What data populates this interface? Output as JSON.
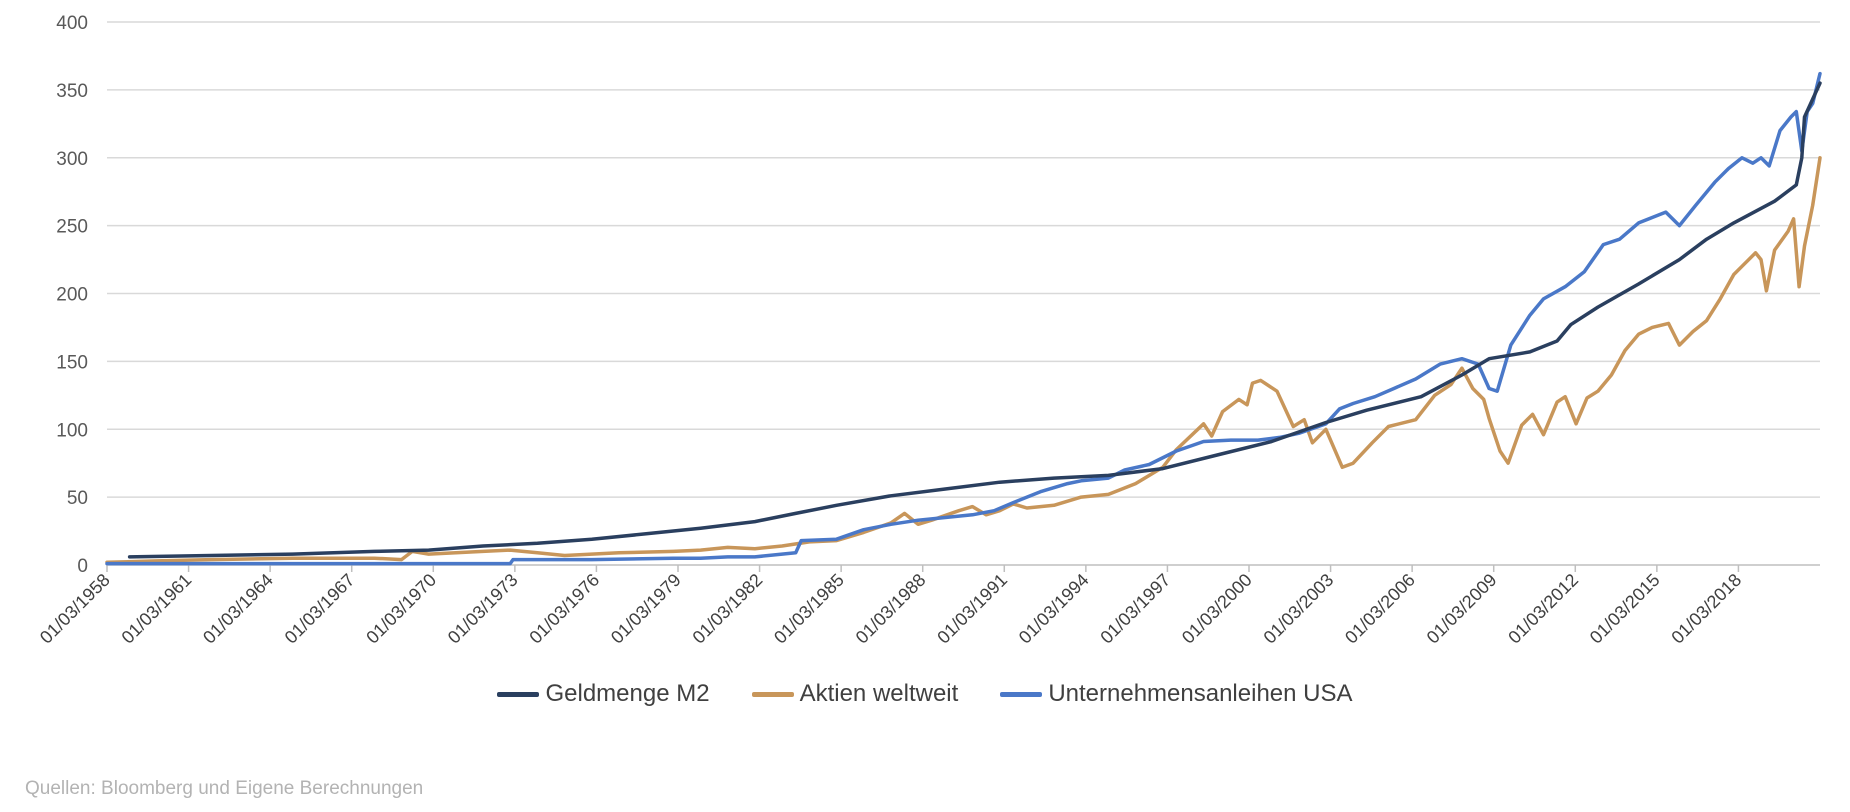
{
  "chart_data": {
    "type": "line",
    "title": "",
    "xlabel": "",
    "ylabel": "",
    "ylim": [
      0,
      400
    ],
    "yticks": [
      "0",
      "50",
      "100",
      "150",
      "200",
      "250",
      "300",
      "350",
      "400"
    ],
    "xlim": [
      1958.17,
      2021.17
    ],
    "x_ticks": [
      {
        "label": "01/03/1958",
        "year": 1958.17
      },
      {
        "label": "01/03/1961",
        "year": 1961.17
      },
      {
        "label": "01/03/1964",
        "year": 1964.17
      },
      {
        "label": "01/03/1967",
        "year": 1967.17
      },
      {
        "label": "01/03/1970",
        "year": 1970.17
      },
      {
        "label": "01/03/1973",
        "year": 1973.17
      },
      {
        "label": "01/03/1976",
        "year": 1976.17
      },
      {
        "label": "01/03/1979",
        "year": 1979.17
      },
      {
        "label": "01/03/1982",
        "year": 1982.17
      },
      {
        "label": "01/03/1985",
        "year": 1985.17
      },
      {
        "label": "01/03/1988",
        "year": 1988.17
      },
      {
        "label": "01/03/1991",
        "year": 1991.17
      },
      {
        "label": "01/03/1994",
        "year": 1994.17
      },
      {
        "label": "01/03/1997",
        "year": 1997.17
      },
      {
        "label": "01/03/2000",
        "year": 2000.17
      },
      {
        "label": "01/03/2003",
        "year": 2003.17
      },
      {
        "label": "01/03/2006",
        "year": 2006.17
      },
      {
        "label": "01/03/2009",
        "year": 2009.17
      },
      {
        "label": "01/03/2012",
        "year": 2012.17
      },
      {
        "label": "01/03/2015",
        "year": 2015.17
      },
      {
        "label": "01/03/2018",
        "year": 2018.17
      }
    ],
    "grid": true,
    "legend_position": "bottom",
    "series": [
      {
        "name": "Geldmenge M2",
        "color": "#2a3f5f",
        "points": [
          [
            1959.0,
            6
          ],
          [
            1962.0,
            7
          ],
          [
            1965.0,
            8
          ],
          [
            1968.0,
            10
          ],
          [
            1970.0,
            11
          ],
          [
            1972.0,
            14
          ],
          [
            1974.0,
            16
          ],
          [
            1976.0,
            19
          ],
          [
            1978.0,
            23
          ],
          [
            1980.0,
            27
          ],
          [
            1982.0,
            32
          ],
          [
            1983.5,
            38
          ],
          [
            1985.0,
            44
          ],
          [
            1987.0,
            51
          ],
          [
            1989.0,
            56
          ],
          [
            1991.0,
            61
          ],
          [
            1993.0,
            64
          ],
          [
            1995.0,
            66
          ],
          [
            1997.0,
            71
          ],
          [
            1999.0,
            81
          ],
          [
            2001.0,
            91
          ],
          [
            2003.0,
            105
          ],
          [
            2004.5,
            114
          ],
          [
            2006.5,
            124
          ],
          [
            2008.0,
            140
          ],
          [
            2009.0,
            152
          ],
          [
            2010.5,
            157
          ],
          [
            2011.5,
            165
          ],
          [
            2012.0,
            177
          ],
          [
            2013.0,
            190
          ],
          [
            2014.5,
            207
          ],
          [
            2016.0,
            225
          ],
          [
            2017.0,
            240
          ],
          [
            2018.0,
            252
          ],
          [
            2019.5,
            268
          ],
          [
            2020.3,
            280
          ],
          [
            2020.5,
            300
          ],
          [
            2020.6,
            330
          ],
          [
            2021.17,
            355
          ]
        ]
      },
      {
        "name": "Aktien weltweit",
        "color": "#c8965a",
        "points": [
          [
            1958.17,
            2
          ],
          [
            1960.0,
            3
          ],
          [
            1962.0,
            4
          ],
          [
            1965.0,
            5
          ],
          [
            1968.0,
            5
          ],
          [
            1969.0,
            4
          ],
          [
            1969.4,
            10
          ],
          [
            1970.0,
            8
          ],
          [
            1971.0,
            9
          ],
          [
            1972.0,
            10
          ],
          [
            1973.0,
            11
          ],
          [
            1974.0,
            9
          ],
          [
            1975.0,
            7
          ],
          [
            1976.0,
            8
          ],
          [
            1977.0,
            9
          ],
          [
            1979.0,
            10
          ],
          [
            1980.0,
            11
          ],
          [
            1981.0,
            13
          ],
          [
            1982.0,
            12
          ],
          [
            1983.0,
            14
          ],
          [
            1984.0,
            17
          ],
          [
            1985.0,
            18
          ],
          [
            1986.0,
            24
          ],
          [
            1987.0,
            31
          ],
          [
            1987.5,
            38
          ],
          [
            1988.0,
            30
          ],
          [
            1988.5,
            33
          ],
          [
            1989.5,
            40
          ],
          [
            1990.0,
            43
          ],
          [
            1990.5,
            37
          ],
          [
            1991.0,
            40
          ],
          [
            1991.5,
            45
          ],
          [
            1992.0,
            42
          ],
          [
            1993.0,
            44
          ],
          [
            1994.0,
            50
          ],
          [
            1995.0,
            52
          ],
          [
            1996.0,
            60
          ],
          [
            1997.0,
            72
          ],
          [
            1997.5,
            85
          ],
          [
            1998.5,
            104
          ],
          [
            1998.8,
            95
          ],
          [
            1999.2,
            113
          ],
          [
            1999.8,
            122
          ],
          [
            2000.1,
            118
          ],
          [
            2000.3,
            134
          ],
          [
            2000.6,
            136
          ],
          [
            2001.2,
            128
          ],
          [
            2001.8,
            102
          ],
          [
            2002.2,
            107
          ],
          [
            2002.5,
            90
          ],
          [
            2003.0,
            100
          ],
          [
            2003.6,
            72
          ],
          [
            2004.0,
            75
          ],
          [
            2004.7,
            90
          ],
          [
            2005.3,
            102
          ],
          [
            2006.3,
            107
          ],
          [
            2007.0,
            125
          ],
          [
            2007.6,
            133
          ],
          [
            2008.0,
            145
          ],
          [
            2008.4,
            130
          ],
          [
            2008.8,
            122
          ],
          [
            2009.0,
            108
          ],
          [
            2009.4,
            84
          ],
          [
            2009.7,
            75
          ],
          [
            2010.2,
            103
          ],
          [
            2010.6,
            111
          ],
          [
            2011.0,
            96
          ],
          [
            2011.5,
            120
          ],
          [
            2011.8,
            124
          ],
          [
            2012.2,
            104
          ],
          [
            2012.6,
            123
          ],
          [
            2013.0,
            128
          ],
          [
            2013.5,
            140
          ],
          [
            2014.0,
            158
          ],
          [
            2014.5,
            170
          ],
          [
            2015.0,
            175
          ],
          [
            2015.6,
            178
          ],
          [
            2016.0,
            162
          ],
          [
            2016.5,
            172
          ],
          [
            2017.0,
            180
          ],
          [
            2017.5,
            196
          ],
          [
            2018.0,
            214
          ],
          [
            2018.3,
            220
          ],
          [
            2018.8,
            230
          ],
          [
            2019.0,
            225
          ],
          [
            2019.2,
            202
          ],
          [
            2019.5,
            232
          ],
          [
            2020.0,
            246
          ],
          [
            2020.2,
            255
          ],
          [
            2020.4,
            205
          ],
          [
            2020.6,
            235
          ],
          [
            2020.9,
            265
          ],
          [
            2021.17,
            300
          ]
        ]
      },
      {
        "name": "Unternehmensanleihen USA",
        "color": "#4a78c8",
        "points": [
          [
            1958.17,
            1
          ],
          [
            1972.0,
            1
          ],
          [
            1973.0,
            1
          ],
          [
            1973.1,
            4
          ],
          [
            1976.0,
            4
          ],
          [
            1979.0,
            5
          ],
          [
            1980.0,
            5
          ],
          [
            1981.0,
            6
          ],
          [
            1982.0,
            6
          ],
          [
            1983.0,
            8
          ],
          [
            1983.5,
            9
          ],
          [
            1983.7,
            18
          ],
          [
            1985.0,
            19
          ],
          [
            1986.0,
            26
          ],
          [
            1987.0,
            30
          ],
          [
            1988.0,
            33
          ],
          [
            1989.0,
            35
          ],
          [
            1990.0,
            37
          ],
          [
            1990.8,
            40
          ],
          [
            1991.5,
            46
          ],
          [
            1992.5,
            54
          ],
          [
            1993.5,
            60
          ],
          [
            1994.0,
            62
          ],
          [
            1995.0,
            64
          ],
          [
            1995.6,
            70
          ],
          [
            1996.5,
            74
          ],
          [
            1997.5,
            84
          ],
          [
            1998.5,
            91
          ],
          [
            1999.5,
            92
          ],
          [
            2000.5,
            92
          ],
          [
            2001.3,
            94
          ],
          [
            2002.0,
            97
          ],
          [
            2003.0,
            104
          ],
          [
            2003.5,
            115
          ],
          [
            2004.0,
            119
          ],
          [
            2004.8,
            124
          ],
          [
            2005.5,
            130
          ],
          [
            2006.3,
            137
          ],
          [
            2007.2,
            148
          ],
          [
            2008.0,
            152
          ],
          [
            2008.6,
            148
          ],
          [
            2009.0,
            130
          ],
          [
            2009.3,
            128
          ],
          [
            2009.8,
            162
          ],
          [
            2010.5,
            184
          ],
          [
            2011.0,
            196
          ],
          [
            2011.8,
            205
          ],
          [
            2012.5,
            216
          ],
          [
            2013.2,
            236
          ],
          [
            2013.8,
            240
          ],
          [
            2014.5,
            252
          ],
          [
            2015.0,
            256
          ],
          [
            2015.5,
            260
          ],
          [
            2016.0,
            250
          ],
          [
            2016.6,
            265
          ],
          [
            2017.3,
            282
          ],
          [
            2017.8,
            292
          ],
          [
            2018.3,
            300
          ],
          [
            2018.7,
            296
          ],
          [
            2019.0,
            300
          ],
          [
            2019.3,
            294
          ],
          [
            2019.7,
            320
          ],
          [
            2020.1,
            330
          ],
          [
            2020.3,
            334
          ],
          [
            2020.5,
            305
          ],
          [
            2020.7,
            334
          ],
          [
            2020.9,
            340
          ],
          [
            2021.17,
            362
          ]
        ]
      }
    ]
  },
  "source_note": "Quellen: Bloomberg und Eigene Berechnungen"
}
